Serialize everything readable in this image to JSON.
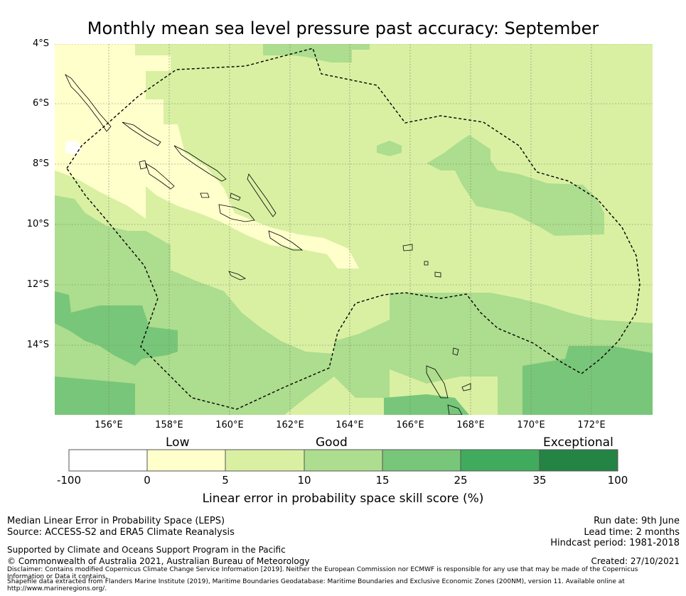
{
  "title": "Monthly mean sea level pressure past accuracy: September",
  "map": {
    "lat_ticks": [
      "4°S",
      "6°S",
      "8°S",
      "10°S",
      "12°S",
      "14°S"
    ],
    "lon_ticks": [
      "156°E",
      "158°E",
      "160°E",
      "162°E",
      "164°E",
      "166°E",
      "168°E",
      "170°E",
      "172°E"
    ],
    "colors": {
      "low": "#ffffcc",
      "good_5_10": "#d9f0a3",
      "good_10_15": "#addd8e",
      "good_15_25": "#78c679",
      "exc": "#41ab5d"
    }
  },
  "colorbar": {
    "categories": [
      "Low",
      "Good",
      "Exceptional"
    ],
    "ticks": [
      "-100",
      "0",
      "5",
      "10",
      "15",
      "25",
      "35",
      "100"
    ],
    "colors": [
      "#ffffff",
      "#ffffcc",
      "#d9f0a3",
      "#addd8e",
      "#78c679",
      "#41ab5d",
      "#238443"
    ],
    "label": "Linear error in probability space skill score (%)"
  },
  "footer": {
    "left": [
      "Median Linear Error in Probability Space (LEPS)",
      "Source: ACCESS-S2 and ERA5 Climate Reanalysis"
    ],
    "right": [
      "Run date: 9th June",
      "Lead time: 2 months",
      "Hindcast period: 1981-2018"
    ],
    "support": "Supported by Climate and Oceans Support Program in the Pacific",
    "copyright": "© Commonwealth of Australia 2021, Australian Bureau of Meteorology",
    "created": "Created: 27/10/2021",
    "disclaimer": "Disclaimer: Contains modified Copernicus Climate Change Service Information [2019]. Neither the European Commission nor ECMWF is responsible for any use that may be made of the Copernicus Information or Data it contains.",
    "shapefile": "Shapefile data extracted from Flanders Marine Institute (2019), Maritime Boundaries Geodatabase: Maritime Boundaries and Exclusive Economic Zones (200NM), version 11. Available online at http://www.marineregions.org/."
  }
}
